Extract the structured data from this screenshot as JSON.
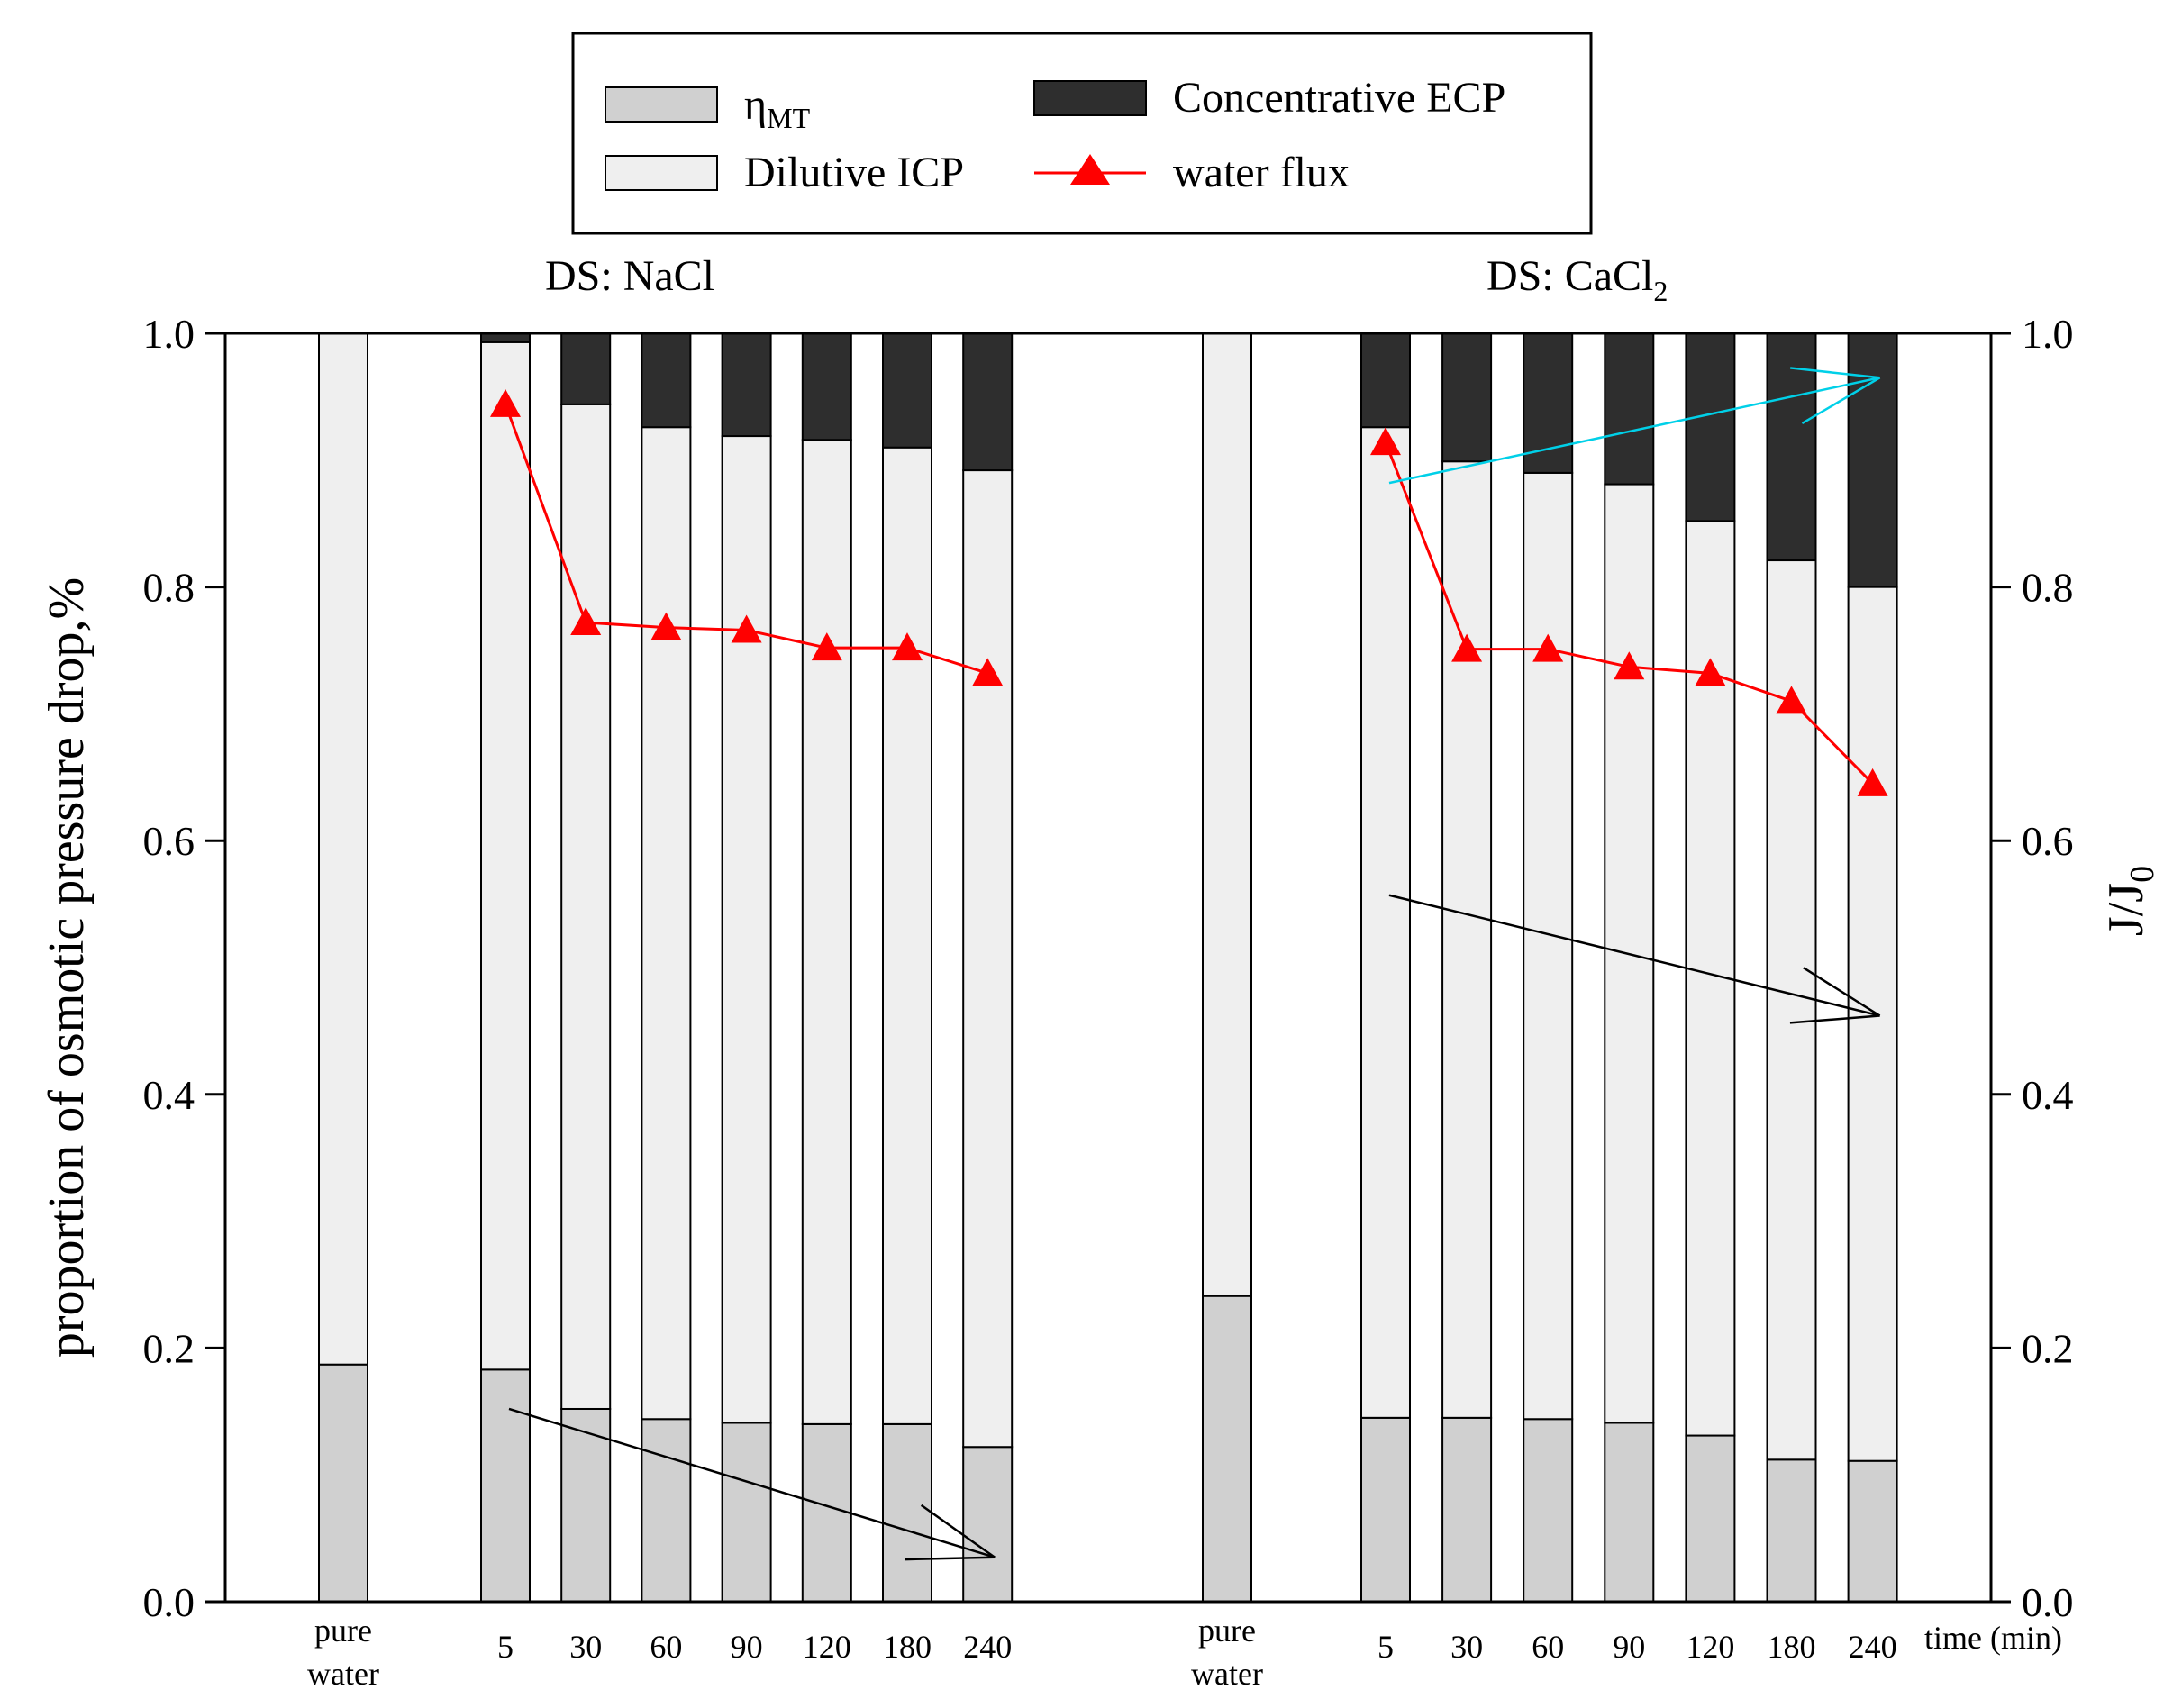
{
  "chart_data": {
    "type": "bar",
    "stacked": true,
    "legend": {
      "placement": "top-center",
      "entries": [
        {
          "key": "eta",
          "label": "η",
          "subscript": "MT"
        },
        {
          "key": "ecp",
          "label": "Concentrative ECP"
        },
        {
          "key": "icp",
          "label": "Dilutive ICP"
        },
        {
          "key": "flux",
          "label": "water flux"
        }
      ]
    },
    "colors": {
      "eta": "#d0d0d0",
      "icp": "#efefef",
      "ecp": "#2e2e2e",
      "flux": "#ff0000",
      "axis": "#000000",
      "trend_black": "#000000",
      "trend_cyan": "#00d0e8"
    },
    "ylabel": "proportion of osmotic pressure drop,%",
    "y2label": "J/J",
    "y2label_sub": "0",
    "xlabel": "time (min)",
    "ylim": [
      0,
      1.0
    ],
    "y2lim": [
      0,
      1.0
    ],
    "yticks": [
      "0.0",
      "0.2",
      "0.4",
      "0.6",
      "0.8",
      "1.0"
    ],
    "groups": [
      {
        "title": "DS: NaCl",
        "title_sub": "",
        "pure_water": {
          "label_line1": "pure",
          "label_line2": "water",
          "eta": 0.187,
          "icp": 0.813,
          "ecp": 0.0
        },
        "categories": [
          "5",
          "30",
          "60",
          "90",
          "120",
          "180",
          "240"
        ],
        "eta": [
          0.183,
          0.152,
          0.144,
          0.141,
          0.14,
          0.14,
          0.122
        ],
        "icp": [
          0.81,
          0.792,
          0.782,
          0.778,
          0.776,
          0.77,
          0.77
        ],
        "ecp": [
          0.007,
          0.056,
          0.074,
          0.081,
          0.084,
          0.09,
          0.108
        ],
        "water_flux": [
          0.944,
          0.772,
          0.768,
          0.766,
          0.752,
          0.752,
          0.732
        ]
      },
      {
        "title": "DS: CaCl",
        "title_sub": "2",
        "pure_water": {
          "label_line1": "pure",
          "label_line2": "water",
          "eta": 0.241,
          "icp": 0.759,
          "ecp": 0.0
        },
        "categories": [
          "5",
          "30",
          "60",
          "90",
          "120",
          "180",
          "240"
        ],
        "eta": [
          0.145,
          0.145,
          0.144,
          0.141,
          0.131,
          0.112,
          0.111
        ],
        "icp": [
          0.781,
          0.754,
          0.746,
          0.74,
          0.721,
          0.709,
          0.689
        ],
        "ecp": [
          0.074,
          0.101,
          0.11,
          0.119,
          0.148,
          0.179,
          0.2
        ],
        "water_flux": [
          0.914,
          0.751,
          0.751,
          0.737,
          0.732,
          0.71,
          0.645
        ]
      }
    ],
    "trend_arrows": [
      {
        "color": "trend_black",
        "from": {
          "cat": "5",
          "group": 0,
          "y": 0.152
        },
        "to": {
          "cat": "240",
          "group": 0,
          "y": 0.035
        }
      },
      {
        "color": "trend_black",
        "from": {
          "cat": "5",
          "group": 1,
          "y": 0.557
        },
        "to": {
          "cat": "240",
          "group": 1,
          "y": 0.462
        }
      },
      {
        "color": "trend_cyan",
        "from": {
          "cat": "5",
          "group": 1,
          "y": 0.882
        },
        "to": {
          "cat": "240",
          "group": 1,
          "y": 0.965
        }
      }
    ]
  }
}
